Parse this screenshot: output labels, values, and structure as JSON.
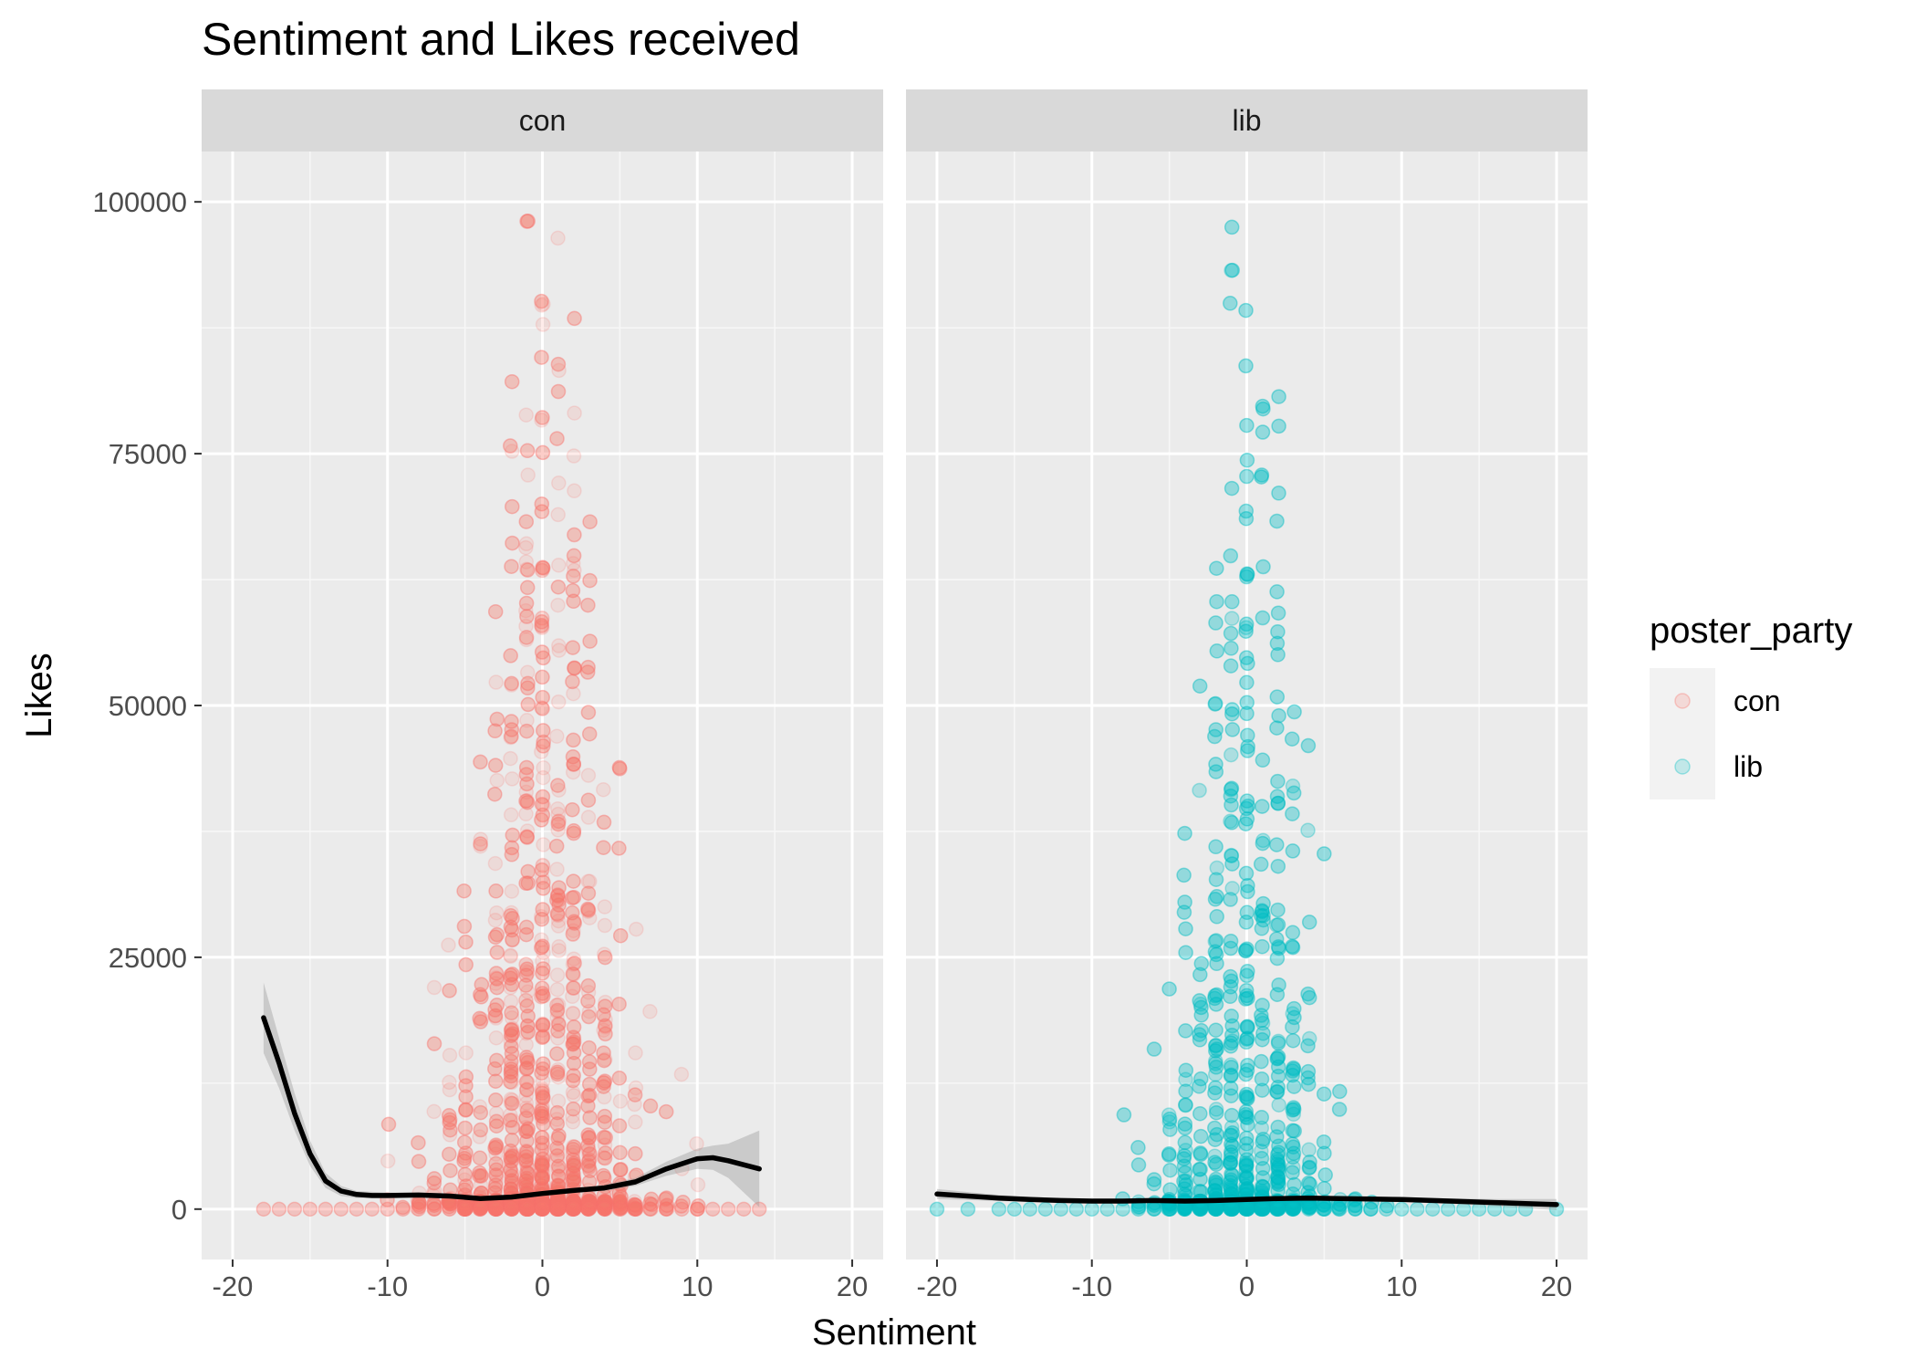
{
  "chart_data": {
    "type": "scatter",
    "title": "Sentiment and Likes received",
    "xlabel": "Sentiment",
    "ylabel": "Likes",
    "xlim": [
      -22,
      22
    ],
    "ylim": [
      -5000,
      105000
    ],
    "x_ticks": [
      -20,
      -10,
      0,
      10,
      20
    ],
    "x_tick_labels": [
      "-20",
      "-10",
      "0",
      "10",
      "20"
    ],
    "y_ticks": [
      0,
      25000,
      50000,
      75000,
      100000
    ],
    "y_tick_labels": [
      "0",
      "25000",
      "50000",
      "75000",
      "100000"
    ],
    "grid": true,
    "legend": {
      "title": "poster_party",
      "placement": "right",
      "entries": [
        {
          "label": "con",
          "color": "#F8766D"
        },
        {
          "label": "lib",
          "color": "#00BFC4"
        }
      ]
    },
    "panels": [
      {
        "strip": "con",
        "color": "#F8766D",
        "smooth": [
          [
            -18,
            19000
          ],
          [
            -17,
            14500
          ],
          [
            -16,
            9500
          ],
          [
            -15,
            5500
          ],
          [
            -14,
            2800
          ],
          [
            -13,
            1800
          ],
          [
            -12,
            1450
          ],
          [
            -11,
            1350
          ],
          [
            -10,
            1350
          ],
          [
            -8,
            1400
          ],
          [
            -6,
            1300
          ],
          [
            -4,
            1050
          ],
          [
            -2,
            1200
          ],
          [
            0,
            1550
          ],
          [
            2,
            1850
          ],
          [
            4,
            2100
          ],
          [
            6,
            2700
          ],
          [
            8,
            4000
          ],
          [
            10,
            5000
          ],
          [
            11,
            5100
          ],
          [
            12,
            4800
          ],
          [
            14,
            4000
          ]
        ],
        "band": [
          [
            -18,
            22500,
            15500
          ],
          [
            -17,
            17000,
            12000
          ],
          [
            -16,
            11500,
            7800
          ],
          [
            -15,
            6800,
            4300
          ],
          [
            -14,
            3600,
            2100
          ],
          [
            -13,
            2300,
            1300
          ],
          [
            -12,
            1800,
            1100
          ],
          [
            -10,
            1650,
            1050
          ],
          [
            -8,
            1650,
            1150
          ],
          [
            -6,
            1550,
            1050
          ],
          [
            -4,
            1250,
            850
          ],
          [
            -2,
            1400,
            1000
          ],
          [
            0,
            1750,
            1350
          ],
          [
            2,
            2050,
            1650
          ],
          [
            4,
            2400,
            1800
          ],
          [
            6,
            3100,
            2300
          ],
          [
            8,
            4700,
            3300
          ],
          [
            10,
            6000,
            4000
          ],
          [
            11,
            6300,
            3900
          ],
          [
            12,
            6500,
            3100
          ],
          [
            14,
            7800,
            200
          ]
        ]
      },
      {
        "strip": "lib",
        "color": "#00BFC4",
        "smooth": [
          [
            -20,
            1500
          ],
          [
            -18,
            1300
          ],
          [
            -16,
            1100
          ],
          [
            -14,
            950
          ],
          [
            -12,
            850
          ],
          [
            -10,
            800
          ],
          [
            -8,
            800
          ],
          [
            -6,
            850
          ],
          [
            -4,
            800
          ],
          [
            -2,
            850
          ],
          [
            0,
            950
          ],
          [
            2,
            1050
          ],
          [
            4,
            1100
          ],
          [
            6,
            1050
          ],
          [
            8,
            1000
          ],
          [
            10,
            950
          ],
          [
            12,
            850
          ],
          [
            14,
            750
          ],
          [
            16,
            650
          ],
          [
            18,
            550
          ],
          [
            20,
            450
          ]
        ],
        "band": [
          [
            -20,
            2000,
            1000
          ],
          [
            -16,
            1400,
            800
          ],
          [
            -12,
            1050,
            650
          ],
          [
            -8,
            950,
            650
          ],
          [
            -4,
            950,
            650
          ],
          [
            0,
            1100,
            800
          ],
          [
            4,
            1250,
            950
          ],
          [
            8,
            1200,
            800
          ],
          [
            12,
            1100,
            600
          ],
          [
            16,
            1000,
            300
          ],
          [
            20,
            1000,
            -100
          ]
        ]
      }
    ]
  }
}
